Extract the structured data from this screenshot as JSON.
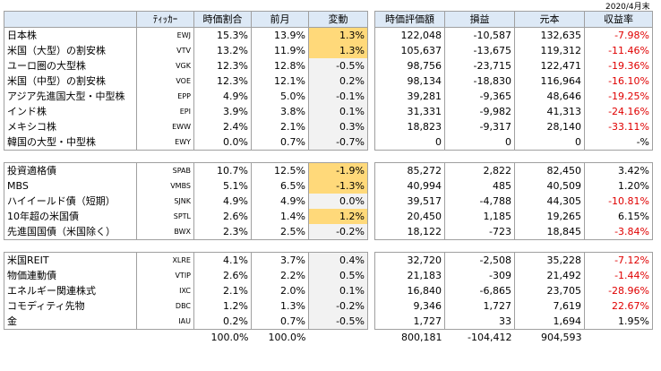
{
  "date_label": "2020/4月末",
  "left_headers": [
    "",
    "ﾃｨｯｶｰ",
    "時価割合",
    "前月",
    "変動"
  ],
  "right_headers": [
    "時価評価額",
    "損益",
    "元本",
    "収益率"
  ],
  "groups": [
    [
      {
        "name": "日本株",
        "ticker": "EWJ",
        "share": "15.3%",
        "prev": "13.9%",
        "chg": "1.3%",
        "hl": true,
        "value": "122,048",
        "pnl": "-10,587",
        "principal": "132,635",
        "ret": "-7.98%",
        "neg": true
      },
      {
        "name": "米国（大型）の割安株",
        "ticker": "VTV",
        "share": "13.2%",
        "prev": "11.9%",
        "chg": "1.3%",
        "hl": true,
        "value": "105,637",
        "pnl": "-13,675",
        "principal": "119,312",
        "ret": "-11.46%",
        "neg": true
      },
      {
        "name": "ユーロ圏の大型株",
        "ticker": "VGK",
        "share": "12.3%",
        "prev": "12.8%",
        "chg": "-0.5%",
        "hl": false,
        "value": "98,756",
        "pnl": "-23,715",
        "principal": "122,471",
        "ret": "-19.36%",
        "neg": true
      },
      {
        "name": "米国（中型）の割安株",
        "ticker": "VOE",
        "share": "12.3%",
        "prev": "12.1%",
        "chg": "0.2%",
        "hl": false,
        "value": "98,134",
        "pnl": "-18,830",
        "principal": "116,964",
        "ret": "-16.10%",
        "neg": true
      },
      {
        "name": "アジア先進国大型・中型株",
        "ticker": "EPP",
        "share": "4.9%",
        "prev": "5.0%",
        "chg": "-0.1%",
        "hl": false,
        "value": "39,281",
        "pnl": "-9,365",
        "principal": "48,646",
        "ret": "-19.25%",
        "neg": true
      },
      {
        "name": "インド株",
        "ticker": "EPI",
        "share": "3.9%",
        "prev": "3.8%",
        "chg": "0.1%",
        "hl": false,
        "value": "31,331",
        "pnl": "-9,982",
        "principal": "41,313",
        "ret": "-24.16%",
        "neg": true
      },
      {
        "name": "メキシコ株",
        "ticker": "EWW",
        "share": "2.4%",
        "prev": "2.1%",
        "chg": "0.3%",
        "hl": false,
        "value": "18,823",
        "pnl": "-9,317",
        "principal": "28,140",
        "ret": "-33.11%",
        "neg": true
      },
      {
        "name": "韓国の大型・中型株",
        "ticker": "EWY",
        "share": "0.0%",
        "prev": "0.7%",
        "chg": "-0.7%",
        "hl": false,
        "value": "0",
        "pnl": "0",
        "principal": "0",
        "ret": "-%",
        "neg": false
      }
    ],
    [
      {
        "name": "投資適格債",
        "ticker": "SPAB",
        "share": "10.7%",
        "prev": "12.5%",
        "chg": "-1.9%",
        "hl": true,
        "value": "85,272",
        "pnl": "2,822",
        "principal": "82,450",
        "ret": "3.42%",
        "neg": false
      },
      {
        "name": "MBS",
        "ticker": "VMBS",
        "share": "5.1%",
        "prev": "6.5%",
        "chg": "-1.3%",
        "hl": true,
        "value": "40,994",
        "pnl": "485",
        "principal": "40,509",
        "ret": "1.20%",
        "neg": false
      },
      {
        "name": "ハイイールド債（短期）",
        "ticker": "SJNK",
        "share": "4.9%",
        "prev": "4.9%",
        "chg": "0.0%",
        "hl": false,
        "value": "39,517",
        "pnl": "-4,788",
        "principal": "44,305",
        "ret": "-10.81%",
        "neg": true
      },
      {
        "name": "10年超の米国債",
        "ticker": "SPTL",
        "share": "2.6%",
        "prev": "1.4%",
        "chg": "1.2%",
        "hl": true,
        "value": "20,450",
        "pnl": "1,185",
        "principal": "19,265",
        "ret": "6.15%",
        "neg": false
      },
      {
        "name": "先進国国債（米国除く）",
        "ticker": "BWX",
        "share": "2.3%",
        "prev": "2.5%",
        "chg": "-0.2%",
        "hl": false,
        "value": "18,122",
        "pnl": "-723",
        "principal": "18,845",
        "ret": "-3.84%",
        "neg": true
      }
    ],
    [
      {
        "name": "米国REIT",
        "ticker": "XLRE",
        "share": "4.1%",
        "prev": "3.7%",
        "chg": "0.4%",
        "hl": false,
        "value": "32,720",
        "pnl": "-2,508",
        "principal": "35,228",
        "ret": "-7.12%",
        "neg": true
      },
      {
        "name": "物価連動債",
        "ticker": "VTIP",
        "share": "2.6%",
        "prev": "2.2%",
        "chg": "0.5%",
        "hl": false,
        "value": "21,183",
        "pnl": "-309",
        "principal": "21,492",
        "ret": "-1.44%",
        "neg": true
      },
      {
        "name": "エネルギー関連株式",
        "ticker": "IXC",
        "share": "2.1%",
        "prev": "2.0%",
        "chg": "0.1%",
        "hl": false,
        "value": "16,840",
        "pnl": "-6,865",
        "principal": "23,705",
        "ret": "-28.96%",
        "neg": true
      },
      {
        "name": "コモディティ先物",
        "ticker": "DBC",
        "share": "1.2%",
        "prev": "1.3%",
        "chg": "-0.2%",
        "hl": false,
        "value": "9,346",
        "pnl": "1,727",
        "principal": "7,619",
        "ret": "22.67%",
        "neg": true
      },
      {
        "name": "金",
        "ticker": "IAU",
        "share": "0.2%",
        "prev": "0.7%",
        "chg": "-0.5%",
        "hl": false,
        "value": "1,727",
        "pnl": "33",
        "principal": "1,694",
        "ret": "1.95%",
        "neg": false
      }
    ]
  ],
  "totals": {
    "share": "100.0%",
    "prev": "100.0%",
    "value": "800,181",
    "pnl": "-104,412",
    "principal": "904,593"
  }
}
